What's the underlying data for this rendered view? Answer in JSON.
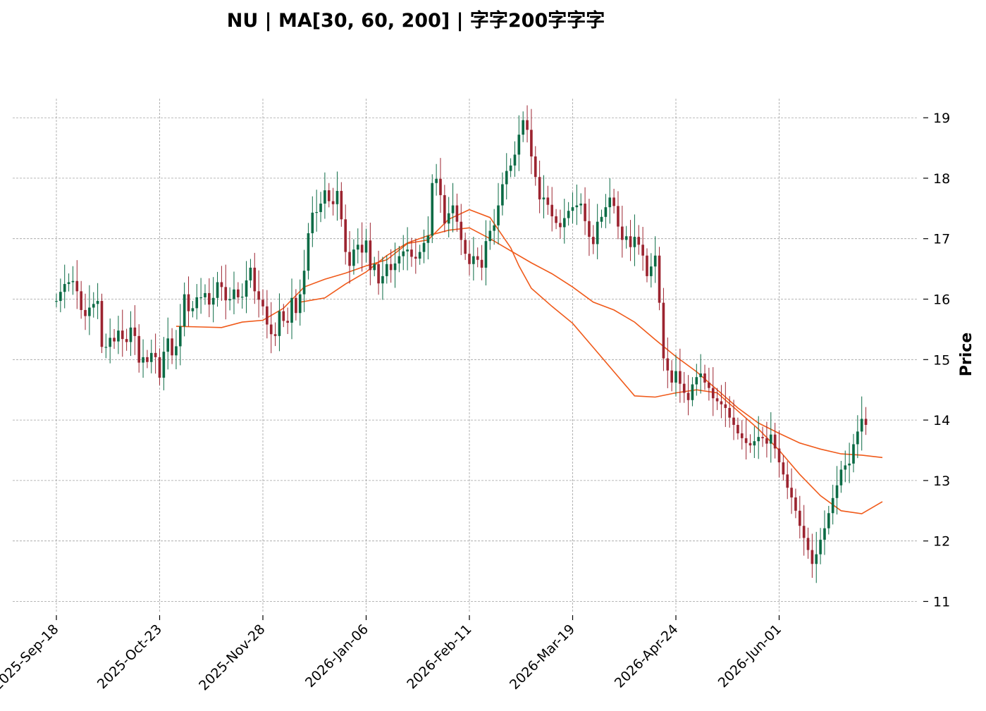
{
  "chart_data": {
    "type": "candlestick",
    "title": "NU  |  MA[30, 60, 200]  |  字字200字字字",
    "xlabel": "",
    "ylabel": "Price",
    "ylim": [
      10.8,
      19.3
    ],
    "yticks": [
      11,
      12,
      13,
      14,
      15,
      16,
      17,
      18,
      19
    ],
    "xtick_labels": [
      "2025-Sep-18",
      "2025-Oct-23",
      "2025-Nov-28",
      "2026-Jan-06",
      "2026-Feb-11",
      "2026-Mar-19",
      "2026-Apr-24",
      "2026-Jun-01"
    ],
    "xtick_index": [
      0,
      25,
      50,
      75,
      100,
      125,
      150,
      175
    ],
    "n_bars": 201,
    "grid": true,
    "y_axis_side": "right",
    "up_color": "#0b6b45",
    "down_color": "#9c2430",
    "ma_color": "#f05a1a",
    "closes": [
      15.97,
      16.12,
      16.25,
      16.28,
      16.3,
      16.13,
      15.82,
      15.72,
      15.86,
      15.92,
      15.97,
      15.21,
      15.21,
      15.36,
      15.3,
      15.48,
      15.34,
      15.29,
      15.53,
      15.39,
      14.95,
      15.04,
      14.96,
      15.11,
      15.04,
      14.7,
      15.13,
      15.35,
      15.07,
      15.22,
      15.55,
      16.08,
      15.8,
      15.85,
      16.03,
      16.03,
      16.1,
      15.91,
      16.02,
      16.28,
      16.2,
      15.98,
      16.0,
      16.16,
      16.03,
      16.04,
      16.31,
      16.52,
      16.13,
      15.99,
      15.88,
      15.58,
      15.42,
      15.39,
      15.8,
      15.64,
      15.61,
      16.02,
      15.77,
      16.08,
      16.47,
      17.09,
      17.43,
      17.44,
      17.58,
      17.8,
      17.62,
      17.57,
      17.79,
      17.32,
      16.78,
      16.55,
      16.82,
      16.9,
      16.77,
      16.97,
      16.48,
      16.58,
      16.26,
      16.38,
      16.58,
      16.48,
      16.59,
      16.71,
      16.79,
      16.82,
      16.7,
      16.67,
      16.78,
      16.93,
      17.05,
      17.92,
      17.99,
      17.72,
      17.25,
      17.42,
      17.55,
      17.28,
      16.98,
      16.75,
      16.58,
      16.71,
      16.65,
      16.52,
      16.96,
      17.13,
      17.22,
      17.55,
      17.9,
      18.12,
      18.21,
      18.39,
      18.72,
      18.96,
      18.8,
      18.36,
      18.02,
      17.65,
      17.68,
      17.56,
      17.37,
      17.26,
      17.19,
      17.34,
      17.46,
      17.52,
      17.55,
      17.58,
      17.29,
      17.03,
      16.91,
      17.28,
      17.36,
      17.52,
      17.68,
      17.54,
      17.2,
      16.98,
      17.04,
      16.86,
      17.03,
      16.9,
      16.72,
      16.38,
      16.54,
      16.72,
      15.94,
      15.02,
      14.82,
      14.62,
      14.81,
      14.6,
      14.45,
      14.33,
      14.59,
      14.71,
      14.77,
      14.62,
      14.53,
      14.36,
      14.31,
      14.26,
      14.2,
      14.04,
      13.92,
      13.78,
      13.7,
      13.62,
      13.58,
      13.65,
      13.72,
      13.7,
      13.61,
      13.76,
      13.53,
      13.3,
      13.1,
      12.88,
      12.72,
      12.5,
      12.25,
      12.05,
      11.85,
      11.62,
      11.78,
      12.02,
      12.21,
      12.46,
      12.71,
      12.92,
      13.18,
      13.25,
      13.28,
      13.6,
      13.81,
      14.02,
      13.92
    ],
    "opens": [
      15.97,
      15.97,
      16.12,
      16.25,
      16.28,
      16.3,
      16.13,
      15.82,
      15.72,
      15.86,
      15.92,
      15.97,
      15.21,
      15.21,
      15.36,
      15.3,
      15.48,
      15.34,
      15.29,
      15.53,
      15.39,
      14.95,
      15.04,
      14.96,
      15.11,
      15.04,
      14.7,
      15.13,
      15.35,
      15.07,
      15.22,
      15.55,
      16.08,
      15.8,
      15.85,
      16.03,
      16.03,
      16.1,
      15.91,
      16.02,
      16.28,
      16.2,
      15.98,
      16.0,
      16.16,
      16.03,
      16.04,
      16.31,
      16.52,
      16.13,
      15.99,
      15.88,
      15.58,
      15.42,
      15.39,
      15.8,
      15.64,
      15.61,
      16.02,
      15.77,
      16.08,
      16.47,
      17.09,
      17.43,
      17.44,
      17.58,
      17.8,
      17.62,
      17.57,
      17.79,
      17.32,
      16.78,
      16.55,
      16.82,
      16.9,
      16.77,
      16.97,
      16.48,
      16.58,
      16.26,
      16.38,
      16.58,
      16.48,
      16.59,
      16.71,
      16.79,
      16.82,
      16.7,
      16.67,
      16.78,
      16.93,
      17.05,
      17.92,
      17.99,
      17.72,
      17.25,
      17.42,
      17.55,
      17.28,
      16.98,
      16.75,
      16.58,
      16.71,
      16.65,
      16.52,
      16.96,
      17.13,
      17.22,
      17.55,
      17.9,
      18.12,
      18.21,
      18.39,
      18.72,
      18.96,
      18.8,
      18.36,
      18.02,
      17.65,
      17.68,
      17.56,
      17.37,
      17.26,
      17.19,
      17.34,
      17.46,
      17.52,
      17.55,
      17.58,
      17.29,
      17.03,
      16.91,
      17.28,
      17.36,
      17.52,
      17.68,
      17.54,
      17.2,
      16.98,
      17.04,
      16.86,
      17.03,
      16.9,
      16.72,
      16.38,
      16.54,
      16.72,
      15.94,
      15.02,
      14.82,
      14.62,
      14.81,
      14.6,
      14.45,
      14.33,
      14.59,
      14.71,
      14.77,
      14.62,
      14.53,
      14.36,
      14.31,
      14.26,
      14.2,
      14.04,
      13.92,
      13.78,
      13.7,
      13.62,
      13.58,
      13.65,
      13.72,
      13.7,
      13.61,
      13.76,
      13.53,
      13.3,
      13.1,
      12.88,
      12.72,
      12.5,
      12.25,
      12.05,
      11.85,
      11.62,
      11.78,
      12.02,
      12.21,
      12.46,
      12.71,
      12.92,
      13.18,
      13.25,
      13.28,
      13.6,
      13.81,
      14.02
    ],
    "series": [
      {
        "window": 30,
        "x": [
          29,
          35,
          40,
          45,
          50,
          55,
          60,
          65,
          70,
          75,
          80,
          85,
          90,
          95,
          100,
          105,
          110,
          112,
          115,
          120,
          125,
          130,
          135,
          140,
          145,
          150,
          155,
          160,
          165,
          170,
          175,
          180,
          185,
          190,
          195,
          200
        ],
        "values": [
          15.55,
          15.54,
          15.53,
          15.62,
          15.65,
          15.85,
          16.2,
          16.33,
          16.43,
          16.55,
          16.65,
          16.92,
          16.98,
          17.32,
          17.48,
          17.35,
          16.85,
          16.55,
          16.18,
          15.88,
          15.6,
          15.2,
          14.8,
          14.4,
          14.38,
          14.45,
          14.5,
          14.45,
          14.15,
          13.85,
          13.5,
          13.1,
          12.75,
          12.5,
          12.45,
          12.65
        ]
      },
      {
        "window": 60,
        "x": [
          59,
          65,
          70,
          75,
          80,
          85,
          90,
          95,
          100,
          105,
          110,
          115,
          120,
          125,
          130,
          135,
          140,
          145,
          150,
          155,
          160,
          165,
          170,
          175,
          180,
          185,
          190,
          195,
          200
        ],
        "values": [
          15.95,
          16.02,
          16.25,
          16.45,
          16.72,
          16.93,
          17.05,
          17.14,
          17.18,
          17.0,
          16.8,
          16.6,
          16.42,
          16.2,
          15.95,
          15.82,
          15.62,
          15.33,
          15.05,
          14.8,
          14.5,
          14.2,
          13.95,
          13.78,
          13.62,
          13.52,
          13.44,
          13.42,
          13.38
        ]
      }
    ]
  }
}
